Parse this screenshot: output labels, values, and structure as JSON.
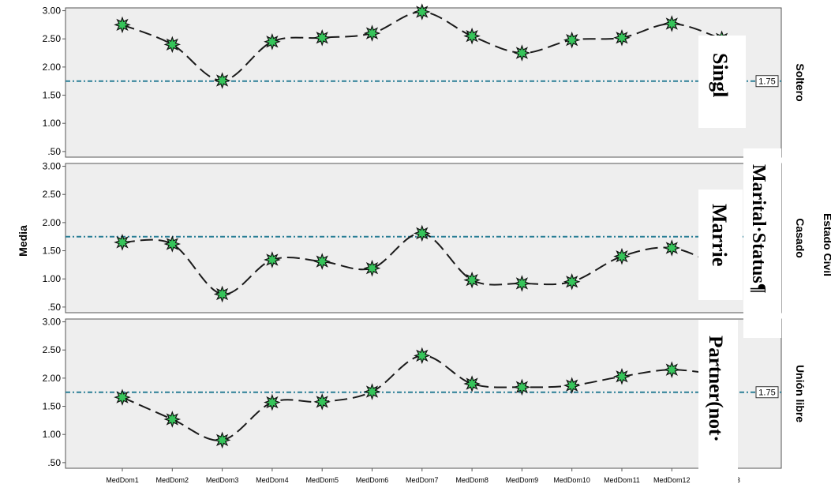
{
  "chart_data": {
    "type": "line",
    "ylabel": "Media",
    "facet_title": "Estado Civil",
    "categories": [
      "MedDom1",
      "MedDom2",
      "MedDom3",
      "MedDom4",
      "MedDom5",
      "MedDom6",
      "MedDom7",
      "MedDom8",
      "MedDom9",
      "MedDom10",
      "MedDom11",
      "MedDom12",
      "MedDom13"
    ],
    "ylim": [
      0.4,
      3.05
    ],
    "yticks": [
      ".50",
      "1.00",
      "1.50",
      "2.00",
      "2.50",
      "3.00"
    ],
    "reference_line": {
      "value": 1.75,
      "label": "1.75"
    },
    "grid": false,
    "panels": [
      {
        "label": "Soltero",
        "values": [
          2.75,
          2.4,
          1.76,
          2.45,
          2.52,
          2.6,
          2.98,
          2.55,
          2.25,
          2.48,
          2.52,
          2.77,
          2.5
        ],
        "show_ref_label": true
      },
      {
        "label": "Casado",
        "values": [
          1.65,
          1.62,
          0.73,
          1.34,
          1.31,
          1.19,
          1.81,
          0.98,
          0.92,
          0.95,
          1.4,
          1.55,
          1.2
        ],
        "show_ref_label": false
      },
      {
        "label": "Unión libre",
        "values": [
          1.66,
          1.27,
          0.9,
          1.57,
          1.58,
          1.76,
          2.4,
          1.9,
          1.84,
          1.87,
          2.03,
          2.15,
          2.05
        ],
        "show_ref_label": true
      }
    ],
    "colors": {
      "panel_bg": "#eeeeee",
      "line": "#1a1a1a",
      "marker_fill": "#36c45a",
      "ref_line": "#2b7f96"
    }
  },
  "overlays": {
    "single": "Singl",
    "married": "Marrie",
    "marital_status": "Marital·Status¶",
    "partner": "Partner(not·"
  }
}
